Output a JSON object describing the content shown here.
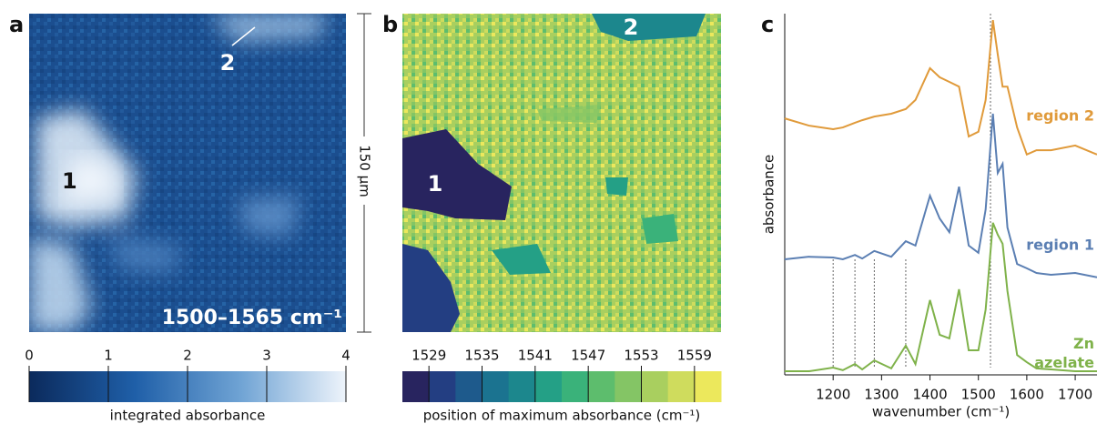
{
  "panel_labels": [
    "a",
    "b",
    "c"
  ],
  "scale_bar": "150 μm",
  "maps": [
    {
      "annotation": "1500–1565 cm⁻¹",
      "region_labels": [
        "1",
        "2"
      ],
      "colorbar": {
        "label": "integrated absorbance",
        "lim": [
          0,
          4
        ],
        "ticks": [
          0,
          1,
          2,
          3,
          4
        ],
        "colors": [
          "#0b2a5c",
          "#1f5fa8",
          "#6fa3d4",
          "#eef4fb"
        ]
      }
    },
    {
      "region_labels": [
        "1",
        "2"
      ],
      "colorbar": {
        "label": "position of maximum absorbance (cm⁻¹)",
        "lim": [
          1526,
          1562
        ],
        "ticks": [
          1529,
          1535,
          1541,
          1547,
          1553,
          1559
        ],
        "colors": [
          "#28245f",
          "#233e82",
          "#1e5a8c",
          "#1b7390",
          "#1c878d",
          "#24a086",
          "#3ab27a",
          "#5dbd6d",
          "#84c565",
          "#a9cf5f",
          "#cfdc5d",
          "#ece85c"
        ]
      }
    }
  ],
  "chart_data": {
    "type": "line",
    "xlabel": "wavenumber (cm⁻¹)",
    "ylabel": "absorbance",
    "x": [
      1100,
      1150,
      1200,
      1220,
      1245,
      1260,
      1285,
      1320,
      1350,
      1370,
      1400,
      1420,
      1440,
      1460,
      1480,
      1500,
      1515,
      1530,
      1540,
      1550,
      1560,
      1580,
      1600,
      1620,
      1650,
      1700,
      1745
    ],
    "xlim": [
      1100,
      1745
    ],
    "xticks": [
      1200,
      1300,
      1400,
      1500,
      1600,
      1700
    ],
    "ylim": [
      0,
      100
    ],
    "markers": [
      1200,
      1245,
      1285,
      1350,
      1525
    ],
    "series": [
      {
        "name": "region 2",
        "color": "#e09a3a",
        "values": [
          71.0,
          69.0,
          68.0,
          68.5,
          69.8,
          70.5,
          71.5,
          72.3,
          73.6,
          76.1,
          84.9,
          82.4,
          81.1,
          79.8,
          66.0,
          67.3,
          76.1,
          98.2,
          88.7,
          79.8,
          79.8,
          68.5,
          61.0,
          62.2,
          62.2,
          63.5,
          61.0
        ]
      },
      {
        "name": "region 1",
        "color": "#5b7fb3",
        "values": [
          32.0,
          32.7,
          32.5,
          32.0,
          33.2,
          32.2,
          34.3,
          32.7,
          37.0,
          35.8,
          49.6,
          43.3,
          39.5,
          52.1,
          35.8,
          33.8,
          45.8,
          72.3,
          55.9,
          58.4,
          40.8,
          30.7,
          29.5,
          28.2,
          27.7,
          28.2,
          27.0
        ]
      },
      {
        "name": "Zn azelate",
        "color": "#7fb24a",
        "values": [
          1.0,
          1.0,
          2.0,
          1.3,
          3.0,
          1.5,
          4.0,
          1.8,
          8.1,
          3.0,
          20.7,
          11.1,
          10.1,
          23.7,
          6.8,
          6.8,
          18.1,
          42.1,
          38.8,
          36.3,
          23.2,
          5.5,
          3.5,
          1.8,
          1.5,
          1.0,
          1.0
        ]
      }
    ]
  }
}
